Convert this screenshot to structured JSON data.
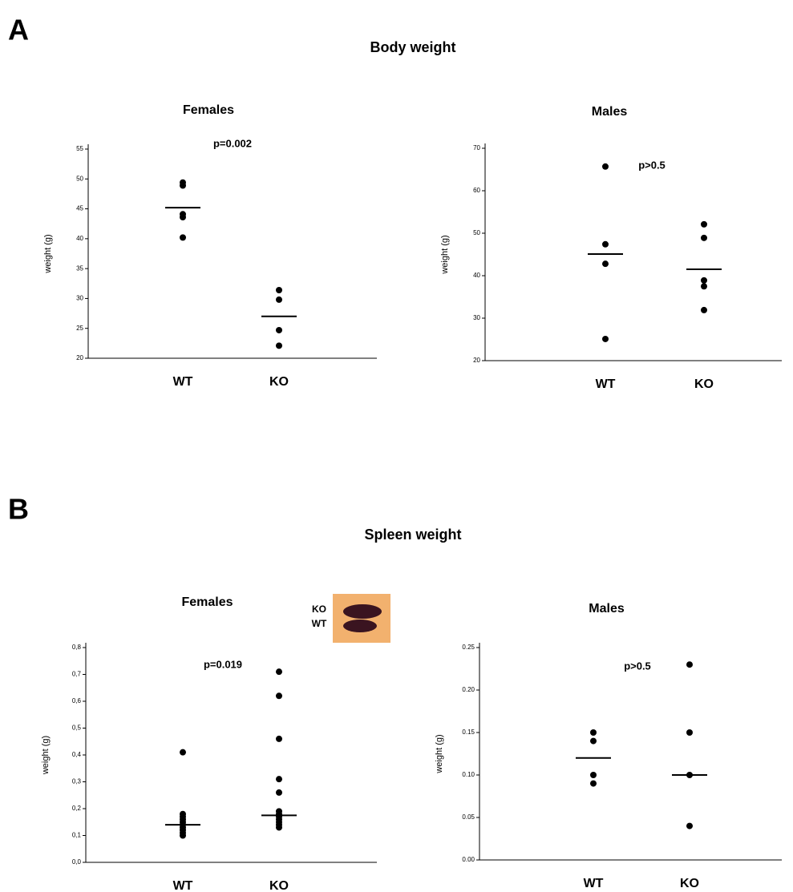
{
  "sections": [
    {
      "label": "A",
      "title": "Body weight"
    },
    {
      "label": "B",
      "title": "Spleen weight"
    }
  ],
  "inset_labels": [
    "KO",
    "WT"
  ],
  "chart_data": [
    {
      "type": "dot",
      "title": "Females",
      "ylabel": "weight (g)",
      "annotation": "p=0.002",
      "categories": [
        "WT",
        "KO"
      ],
      "values": [
        [
          49.4,
          48.9,
          44.1,
          43.6,
          40.2
        ],
        [
          31.4,
          29.8,
          24.7,
          22.1
        ]
      ],
      "means": [
        45.2,
        27.0
      ],
      "color": "#000000",
      "ylim": [
        20,
        55
      ],
      "yticks": [
        20,
        25,
        30,
        35,
        40,
        45,
        50,
        55
      ]
    },
    {
      "type": "dot",
      "title": "Males",
      "ylabel": "weight (g)",
      "annotation": "p>0.5",
      "categories": [
        "WT",
        "KO"
      ],
      "values": [
        [
          65.7,
          47.4,
          42.8,
          25.1
        ],
        [
          52.1,
          48.9,
          38.9,
          37.5,
          31.9
        ]
      ],
      "means": [
        45.1,
        41.5
      ],
      "color": "#000000",
      "ylim": [
        20,
        70
      ],
      "yticks": [
        20,
        30,
        40,
        50,
        60,
        70
      ]
    },
    {
      "type": "dot",
      "title": "Females",
      "ylabel": "weight (g)",
      "annotation": "p=0.019",
      "categories": [
        "WT",
        "KO"
      ],
      "values": [
        [
          0.41,
          0.18,
          0.17,
          0.16,
          0.15,
          0.14,
          0.13,
          0.12,
          0.11,
          0.1
        ],
        [
          0.71,
          0.62,
          0.46,
          0.31,
          0.26,
          0.19,
          0.18,
          0.17,
          0.16,
          0.15,
          0.14,
          0.13
        ]
      ],
      "means": [
        0.14,
        0.175
      ],
      "color": "#000000",
      "ylim": [
        0,
        0.8
      ],
      "yticks": [
        {
          "value": 0,
          "label": "0,0"
        },
        {
          "value": 0.1,
          "label": "0,1"
        },
        {
          "value": 0.2,
          "label": "0,2"
        },
        {
          "value": 0.3,
          "label": "0,3"
        },
        {
          "value": 0.4,
          "label": "0,4"
        },
        {
          "value": 0.5,
          "label": "0,5"
        },
        {
          "value": 0.6,
          "label": "0,6"
        },
        {
          "value": 0.7,
          "label": "0,7"
        },
        {
          "value": 0.8,
          "label": "0,8"
        }
      ]
    },
    {
      "type": "dot",
      "title": "Males",
      "ylabel": "weight (g)",
      "annotation": "p>0.5",
      "categories": [
        "WT",
        "KO"
      ],
      "values": [
        [
          0.15,
          0.14,
          0.1,
          0.09
        ],
        [
          0.23,
          0.15,
          0.1,
          0.04
        ]
      ],
      "means": [
        0.12,
        0.1
      ],
      "color": "#000000",
      "ylim": [
        0,
        0.25
      ],
      "yticks": [
        {
          "value": 0,
          "label": "0.00"
        },
        {
          "value": 0.05,
          "label": "0.05"
        },
        {
          "value": 0.1,
          "label": "0.10"
        },
        {
          "value": 0.15,
          "label": "0.15"
        },
        {
          "value": 0.2,
          "label": "0.20"
        },
        {
          "value": 0.25,
          "label": "0.25"
        }
      ]
    }
  ]
}
